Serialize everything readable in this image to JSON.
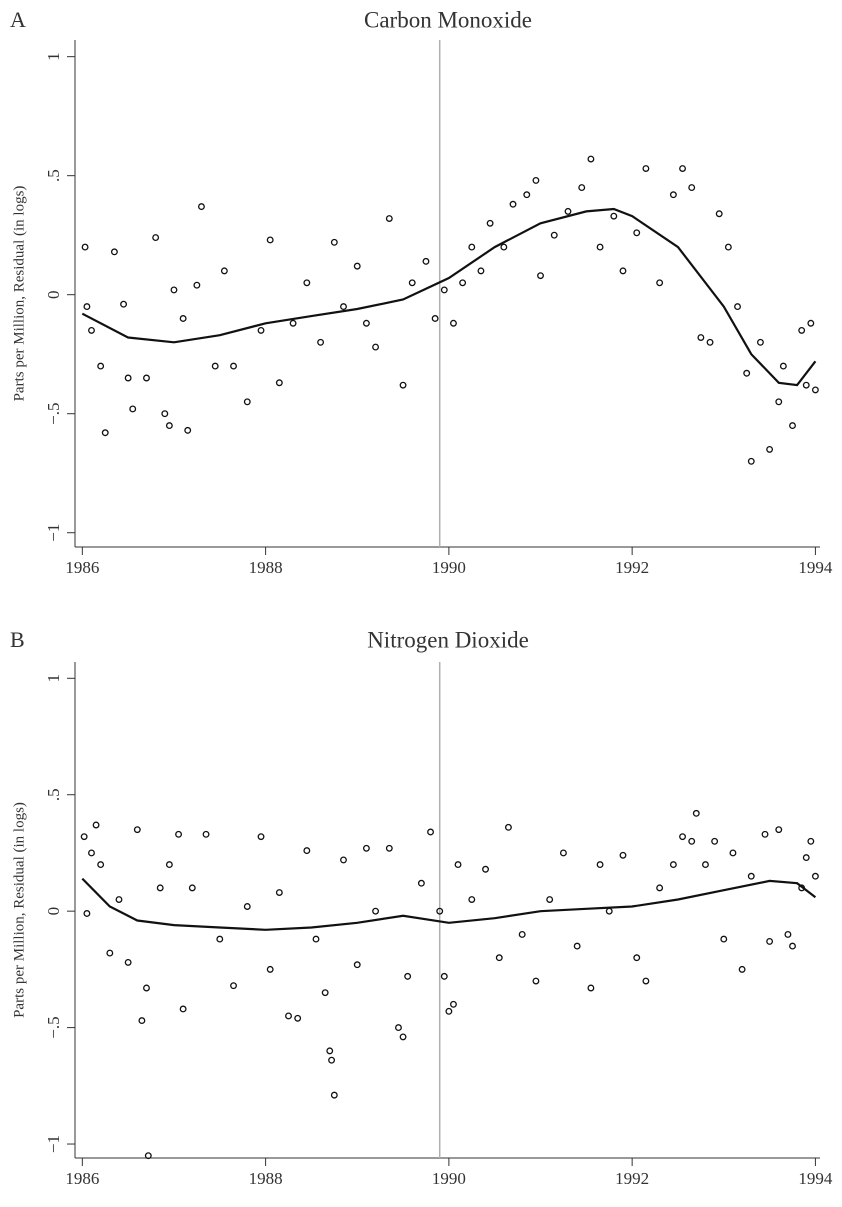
{
  "chart_data": [
    {
      "type": "scatter",
      "panel_label": "A",
      "title": "Carbon Monoxide",
      "y_label": "Parts per Million, Residual (in logs)",
      "xlim": [
        1985.92,
        1994.05
      ],
      "xticks": [
        1986,
        1988,
        1990,
        1992,
        1994
      ],
      "ylim": [
        -1.06,
        1.07
      ],
      "yticks": [
        {
          "value": -1,
          "label": "−1"
        },
        {
          "value": -0.5,
          "label": "−.5"
        },
        0,
        {
          "value": 0.5,
          "label": ".5"
        },
        1
      ],
      "vline": 1989.9,
      "vline_color": "#b0b0b0",
      "marker_color": "#111",
      "line_color": "#111",
      "points": {
        "x": [
          1986.03,
          1986.05,
          1986.1,
          1986.2,
          1986.25,
          1986.35,
          1986.45,
          1986.5,
          1986.55,
          1986.7,
          1986.8,
          1986.9,
          1986.95,
          1987.0,
          1987.1,
          1987.15,
          1987.25,
          1987.3,
          1987.45,
          1987.55,
          1987.65,
          1987.8,
          1987.95,
          1988.05,
          1988.15,
          1988.3,
          1988.45,
          1988.6,
          1988.75,
          1988.85,
          1989.0,
          1989.1,
          1989.2,
          1989.35,
          1989.5,
          1989.6,
          1989.75,
          1989.85,
          1989.95,
          1990.05,
          1990.15,
          1990.25,
          1990.35,
          1990.45,
          1990.6,
          1990.7,
          1990.85,
          1990.95,
          1991.0,
          1991.15,
          1991.3,
          1991.45,
          1991.55,
          1991.65,
          1991.8,
          1991.9,
          1992.05,
          1992.15,
          1992.3,
          1992.45,
          1992.55,
          1992.65,
          1992.75,
          1992.85,
          1992.95,
          1993.05,
          1993.15,
          1993.25,
          1993.3,
          1993.4,
          1993.5,
          1993.6,
          1993.65,
          1993.75,
          1993.85,
          1993.9,
          1993.95,
          1994.0
        ],
        "y": [
          0.2,
          -0.05,
          -0.15,
          -0.3,
          -0.58,
          0.18,
          -0.04,
          -0.35,
          -0.48,
          -0.35,
          0.24,
          -0.5,
          -0.55,
          0.02,
          -0.1,
          -0.57,
          0.04,
          0.37,
          -0.3,
          0.1,
          -0.3,
          -0.45,
          -0.15,
          0.23,
          -0.37,
          -0.12,
          0.05,
          -0.2,
          0.22,
          -0.05,
          0.12,
          -0.12,
          -0.22,
          0.32,
          -0.38,
          0.05,
          0.14,
          -0.1,
          0.02,
          -0.12,
          0.05,
          0.2,
          0.1,
          0.3,
          0.2,
          0.38,
          0.42,
          0.48,
          0.08,
          0.25,
          0.35,
          0.45,
          0.57,
          0.2,
          0.33,
          0.1,
          0.26,
          0.53,
          0.05,
          0.42,
          0.53,
          0.45,
          -0.18,
          -0.2,
          0.34,
          0.2,
          -0.05,
          -0.33,
          -0.7,
          -0.2,
          -0.65,
          -0.45,
          -0.3,
          -0.55,
          -0.15,
          -0.38,
          -0.12,
          -0.4
        ]
      },
      "line": {
        "x": [
          1986,
          1986.5,
          1987,
          1987.5,
          1988,
          1988.5,
          1989,
          1989.5,
          1990,
          1990.5,
          1991,
          1991.5,
          1991.8,
          1992,
          1992.5,
          1993,
          1993.3,
          1993.6,
          1993.8,
          1994
        ],
        "y": [
          -0.08,
          -0.18,
          -0.2,
          -0.17,
          -0.12,
          -0.09,
          -0.06,
          -0.02,
          0.07,
          0.2,
          0.3,
          0.35,
          0.36,
          0.33,
          0.2,
          -0.05,
          -0.25,
          -0.37,
          -0.38,
          -0.28
        ]
      }
    },
    {
      "type": "scatter",
      "panel_label": "B",
      "title": "Nitrogen Dioxide",
      "y_label": "Parts per Million, Residual (in logs)",
      "xlim": [
        1985.92,
        1994.05
      ],
      "xticks": [
        1986,
        1988,
        1990,
        1992,
        1994
      ],
      "ylim": [
        -1.06,
        1.07
      ],
      "yticks": [
        {
          "value": -1,
          "label": "−1"
        },
        {
          "value": -0.5,
          "label": "−.5"
        },
        0,
        {
          "value": 0.5,
          "label": ".5"
        },
        1
      ],
      "vline": 1989.9,
      "vline_color": "#b0b0b0",
      "marker_color": "#111",
      "line_color": "#111",
      "points": {
        "x": [
          1986.02,
          1986.05,
          1986.1,
          1986.15,
          1986.2,
          1986.3,
          1986.4,
          1986.5,
          1986.6,
          1986.65,
          1986.7,
          1986.72,
          1986.85,
          1986.95,
          1987.05,
          1987.1,
          1987.2,
          1987.35,
          1987.5,
          1987.65,
          1987.8,
          1987.95,
          1988.05,
          1988.15,
          1988.25,
          1988.35,
          1988.45,
          1988.55,
          1988.65,
          1988.7,
          1988.72,
          1988.75,
          1988.85,
          1989.0,
          1989.1,
          1989.2,
          1989.35,
          1989.45,
          1989.5,
          1989.55,
          1989.7,
          1989.8,
          1989.9,
          1989.95,
          1990.0,
          1990.05,
          1990.1,
          1990.25,
          1990.4,
          1990.55,
          1990.65,
          1990.8,
          1990.95,
          1991.1,
          1991.25,
          1991.4,
          1991.55,
          1991.65,
          1991.75,
          1991.9,
          1992.05,
          1992.15,
          1992.3,
          1992.45,
          1992.55,
          1992.65,
          1992.7,
          1992.8,
          1992.9,
          1993.0,
          1993.1,
          1993.2,
          1993.3,
          1993.45,
          1993.5,
          1993.6,
          1993.7,
          1993.75,
          1993.85,
          1993.9,
          1993.95,
          1994.0
        ],
        "y": [
          0.32,
          -0.01,
          0.25,
          0.37,
          0.2,
          -0.18,
          0.05,
          -0.22,
          0.35,
          -0.47,
          -0.33,
          -1.05,
          0.1,
          0.2,
          0.33,
          -0.42,
          0.1,
          0.33,
          -0.12,
          -0.32,
          0.02,
          0.32,
          -0.25,
          0.08,
          -0.45,
          -0.46,
          0.26,
          -0.12,
          -0.35,
          -0.6,
          -0.64,
          -0.79,
          0.22,
          -0.23,
          0.27,
          0.0,
          0.27,
          -0.5,
          -0.54,
          -0.28,
          0.12,
          0.34,
          0.0,
          -0.28,
          -0.43,
          -0.4,
          0.2,
          0.05,
          0.18,
          -0.2,
          0.36,
          -0.1,
          -0.3,
          0.05,
          0.25,
          -0.15,
          -0.33,
          0.2,
          0.0,
          0.24,
          -0.2,
          -0.3,
          0.1,
          0.2,
          0.32,
          0.3,
          0.42,
          0.2,
          0.3,
          -0.12,
          0.25,
          -0.25,
          0.15,
          0.33,
          -0.13,
          0.35,
          -0.1,
          -0.15,
          0.1,
          0.23,
          0.3,
          0.15
        ]
      },
      "line": {
        "x": [
          1986,
          1986.3,
          1986.6,
          1987,
          1987.5,
          1988,
          1988.5,
          1989,
          1989.5,
          1990,
          1990.5,
          1991,
          1991.5,
          1992,
          1992.5,
          1993,
          1993.5,
          1993.8,
          1994
        ],
        "y": [
          0.14,
          0.02,
          -0.04,
          -0.06,
          -0.07,
          -0.08,
          -0.07,
          -0.05,
          -0.02,
          -0.05,
          -0.03,
          0.0,
          0.01,
          0.02,
          0.05,
          0.09,
          0.13,
          0.12,
          0.06
        ]
      }
    }
  ]
}
